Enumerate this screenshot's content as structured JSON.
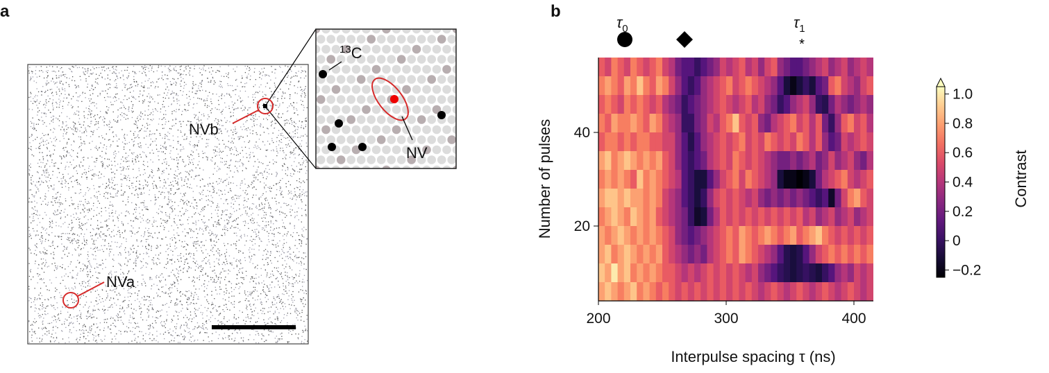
{
  "panel_a": {
    "label": "a",
    "nv_a_label": "NVa",
    "nv_b_label": "NVb",
    "inset": {
      "c13_mass": "13",
      "c13_element": "C",
      "nv_label": "NV"
    },
    "colors": {
      "marker": "#d62a2a",
      "nuclei": "#000000"
    }
  },
  "panel_b": {
    "label": "b"
  },
  "chart_data": {
    "type": "heatmap",
    "title": "",
    "xlabel": "Interpulse spacing τ (ns)",
    "ylabel": "Number of pulses",
    "xlim": [
      200,
      415
    ],
    "ylim": [
      4,
      56
    ],
    "xticks": [
      "200",
      "300",
      "400"
    ],
    "yticks": [
      "20",
      "40"
    ],
    "annotations": [
      {
        "symbol": "circle",
        "label_main": "τ",
        "label_sub": "0",
        "x": 220
      },
      {
        "symbol": "diamond",
        "label_main": "",
        "label_sub": "",
        "x": 268
      },
      {
        "symbol": "*",
        "label_main": "τ",
        "label_sub": "1",
        "x": 362
      }
    ],
    "colorbar": {
      "label": "Contrast",
      "range": [
        -0.25,
        1.05
      ],
      "ticks": [
        "1.0",
        "0.8",
        "0.6",
        "0.4",
        "0.2",
        "0",
        "−0.2"
      ],
      "tick_values": [
        1.0,
        0.8,
        0.6,
        0.4,
        0.2,
        0,
        -0.2
      ],
      "colormap": "magma",
      "extend": "max"
    },
    "x_start": 200,
    "x_step": 5,
    "y": [
      54,
      50,
      46,
      42,
      38,
      34,
      30,
      26,
      22,
      18,
      14,
      10,
      6
    ],
    "z": [
      [
        0.6,
        0.5,
        0.7,
        0.6,
        0.5,
        0.7,
        0.6,
        0.5,
        0.6,
        0.7,
        0.5,
        0.4,
        0.2,
        0.1,
        0.1,
        0.0,
        0.1,
        0.2,
        0.3,
        0.5,
        0.4,
        0.5,
        0.6,
        0.4,
        0.5,
        0.3,
        0.5,
        0.6,
        0.3,
        0.2,
        0.1,
        0.1,
        0.2,
        0.3,
        0.4,
        0.5,
        0.3,
        0.4,
        0.5,
        0.3,
        0.4,
        0.5,
        0.4
      ],
      [
        0.7,
        0.8,
        0.7,
        0.6,
        0.8,
        0.7,
        0.9,
        0.7,
        0.6,
        0.8,
        0.7,
        0.5,
        0.3,
        0.1,
        0.0,
        0.1,
        0.3,
        0.4,
        0.5,
        0.6,
        0.7,
        0.5,
        0.6,
        0.7,
        0.6,
        0.5,
        0.4,
        0.3,
        0.1,
        -0.1,
        -0.2,
        -0.1,
        0.0,
        -0.1,
        0.1,
        0.2,
        0.6,
        0.7,
        0.5,
        0.4,
        0.3,
        0.5,
        0.6
      ],
      [
        0.6,
        0.7,
        0.6,
        0.5,
        0.7,
        0.6,
        0.7,
        0.6,
        0.5,
        0.6,
        0.4,
        0.3,
        0.2,
        0.0,
        0.1,
        0.2,
        0.3,
        0.4,
        0.5,
        0.6,
        0.5,
        0.4,
        0.5,
        0.6,
        0.4,
        0.5,
        0.3,
        0.2,
        0.0,
        0.1,
        0.3,
        0.4,
        0.5,
        0.3,
        0.0,
        -0.05,
        0.2,
        0.4,
        0.3,
        0.2,
        0.3,
        0.4,
        0.3
      ],
      [
        0.7,
        0.6,
        0.8,
        0.7,
        0.7,
        0.8,
        0.7,
        0.6,
        0.8,
        0.7,
        0.5,
        0.4,
        0.3,
        0.0,
        0.0,
        0.2,
        0.3,
        0.5,
        0.4,
        0.6,
        0.7,
        0.9,
        0.6,
        0.5,
        0.6,
        0.3,
        0.2,
        0.4,
        0.5,
        0.6,
        0.7,
        0.5,
        0.6,
        0.4,
        0.6,
        0.2,
        0.0,
        0.3,
        0.6,
        0.7,
        0.5,
        0.6,
        0.4
      ],
      [
        0.6,
        0.7,
        0.7,
        0.6,
        0.7,
        0.6,
        0.7,
        0.7,
        0.6,
        0.6,
        0.5,
        0.5,
        0.3,
        0.1,
        -0.05,
        0.1,
        0.3,
        0.4,
        0.5,
        0.6,
        0.5,
        0.6,
        0.7,
        0.5,
        0.6,
        0.5,
        0.7,
        0.6,
        0.5,
        0.6,
        0.5,
        0.7,
        0.6,
        0.4,
        0.6,
        0.3,
        0.1,
        0.2,
        0.5,
        0.4,
        0.5,
        0.6,
        0.5
      ],
      [
        0.8,
        0.9,
        0.7,
        0.8,
        0.9,
        0.8,
        0.7,
        0.8,
        0.7,
        0.8,
        0.6,
        0.5,
        0.3,
        0.1,
        0.0,
        0.1,
        0.2,
        0.4,
        0.5,
        0.6,
        0.5,
        0.7,
        0.6,
        0.5,
        0.6,
        0.5,
        0.4,
        0.3,
        0.2,
        0.2,
        0.3,
        0.2,
        0.3,
        0.4,
        0.2,
        0.3,
        0.5,
        0.3,
        0.4,
        0.5,
        0.3,
        0.2,
        0.4
      ],
      [
        0.7,
        0.8,
        0.7,
        0.8,
        0.7,
        0.6,
        0.9,
        0.7,
        0.8,
        0.7,
        0.6,
        0.5,
        0.4,
        0.1,
        0.0,
        -0.1,
        -0.1,
        0.1,
        0.3,
        0.5,
        0.6,
        0.7,
        0.5,
        0.7,
        0.6,
        0.5,
        0.4,
        0.3,
        -0.1,
        -0.2,
        -0.2,
        -0.25,
        -0.2,
        -0.1,
        0.2,
        0.4,
        0.5,
        0.6,
        0.7,
        0.5,
        0.4,
        0.5,
        0.6
      ],
      [
        0.8,
        0.9,
        0.9,
        0.8,
        0.9,
        0.8,
        0.8,
        0.7,
        0.8,
        0.7,
        0.5,
        0.4,
        0.3,
        0.1,
        0.0,
        -0.1,
        0.0,
        0.3,
        0.5,
        0.6,
        0.5,
        0.6,
        0.5,
        0.4,
        0.5,
        0.3,
        0.2,
        0.3,
        0.2,
        0.3,
        0.2,
        0.3,
        0.2,
        0.1,
        0.0,
        0.1,
        -0.15,
        0.2,
        0.5,
        0.7,
        0.8,
        0.6,
        0.5
      ],
      [
        0.7,
        0.8,
        0.9,
        0.8,
        0.7,
        0.9,
        0.8,
        0.7,
        0.8,
        0.6,
        0.5,
        0.4,
        0.3,
        0.2,
        0.0,
        -0.15,
        -0.1,
        0.2,
        0.4,
        0.6,
        0.5,
        0.6,
        0.5,
        0.6,
        0.5,
        0.6,
        0.5,
        0.6,
        0.5,
        0.6,
        0.5,
        0.6,
        0.4,
        0.5,
        0.3,
        0.4,
        0.5,
        0.3,
        0.4,
        0.5,
        0.3,
        0.4,
        0.5
      ],
      [
        0.8,
        0.7,
        0.8,
        0.9,
        0.8,
        0.7,
        0.8,
        0.7,
        0.8,
        0.7,
        0.6,
        0.5,
        0.3,
        0.2,
        0.1,
        0.2,
        0.3,
        0.4,
        0.5,
        0.6,
        0.7,
        0.6,
        0.8,
        0.7,
        0.6,
        0.7,
        0.8,
        0.7,
        0.6,
        0.7,
        0.8,
        0.6,
        0.7,
        0.8,
        0.9,
        0.7,
        0.6,
        0.5,
        0.6,
        0.5,
        0.6,
        0.5,
        0.6
      ],
      [
        0.8,
        0.9,
        0.7,
        0.8,
        0.9,
        0.8,
        0.7,
        0.8,
        0.7,
        0.8,
        0.6,
        0.5,
        0.4,
        0.3,
        0.2,
        0.3,
        0.2,
        0.4,
        0.5,
        0.6,
        0.7,
        0.6,
        0.8,
        0.7,
        0.6,
        0.5,
        0.4,
        0.3,
        0.1,
        -0.05,
        -0.1,
        -0.05,
        0.1,
        0.3,
        0.5,
        0.6,
        0.7,
        0.6,
        0.7,
        0.6,
        0.7,
        0.6,
        0.7
      ],
      [
        0.9,
        0.8,
        1.0,
        0.8,
        0.9,
        0.7,
        0.8,
        0.7,
        0.8,
        0.7,
        0.6,
        0.6,
        0.5,
        0.4,
        0.5,
        0.4,
        0.5,
        0.6,
        0.5,
        0.6,
        0.5,
        0.6,
        0.5,
        0.4,
        0.5,
        0.3,
        0.2,
        0.1,
        0.0,
        -0.05,
        -0.1,
        -0.05,
        0.0,
        -0.05,
        -0.1,
        0.0,
        0.1,
        0.3,
        0.4,
        0.3,
        0.5,
        0.4,
        0.5
      ],
      [
        0.8,
        0.9,
        0.8,
        0.7,
        0.8,
        0.9,
        0.7,
        0.8,
        0.7,
        0.6,
        0.7,
        0.6,
        0.5,
        0.6,
        0.5,
        0.6,
        0.5,
        0.6,
        0.5,
        0.6,
        0.5,
        0.6,
        0.5,
        0.6,
        0.5,
        0.4,
        0.5,
        0.6,
        0.5,
        0.4,
        0.5,
        0.6,
        0.5,
        0.4,
        0.5,
        0.6,
        0.5,
        0.4,
        0.5,
        0.6,
        0.5,
        0.4,
        0.5
      ]
    ]
  }
}
